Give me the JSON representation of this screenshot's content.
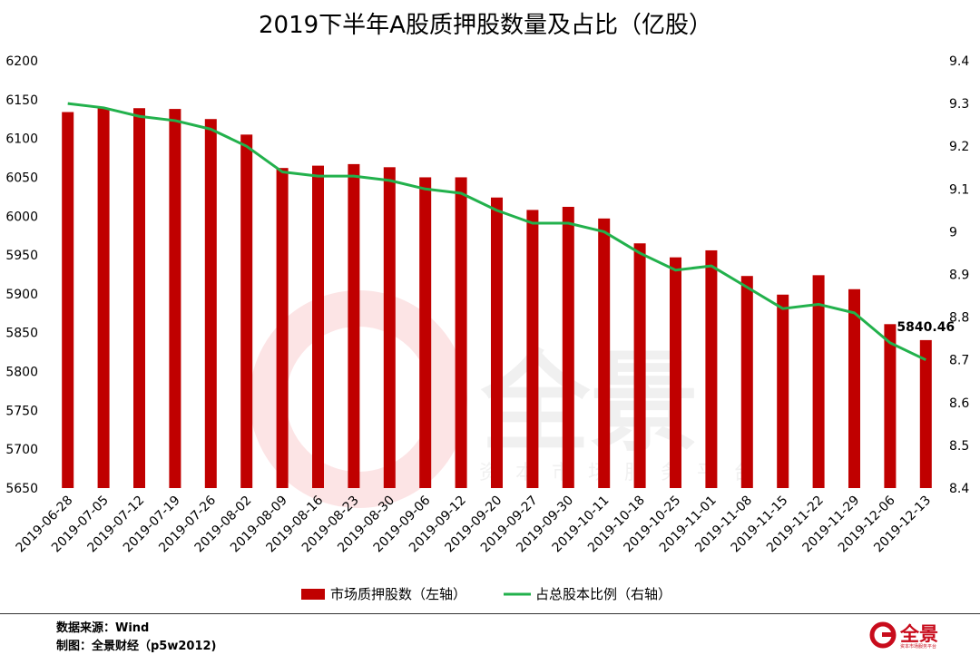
{
  "chart_data": {
    "type": "bar+line",
    "title": "2019下半年A股质押股数量及占比（亿股）",
    "categories": [
      "2019-06-28",
      "2019-07-05",
      "2019-07-12",
      "2019-07-19",
      "2019-07-26",
      "2019-08-02",
      "2019-08-09",
      "2019-08-16",
      "2019-08-23",
      "2019-08-30",
      "2019-09-06",
      "2019-09-12",
      "2019-09-20",
      "2019-09-27",
      "2019-09-30",
      "2019-10-11",
      "2019-10-18",
      "2019-10-25",
      "2019-11-01",
      "2019-11-08",
      "2019-11-15",
      "2019-11-22",
      "2019-11-29",
      "2019-12-06",
      "2019-12-13"
    ],
    "series": [
      {
        "name": "市场质押股数（左轴）",
        "type": "bar",
        "axis": "left",
        "color": "#c00000",
        "values": [
          6134,
          6139,
          6139,
          6138,
          6125,
          6105,
          6062,
          6065,
          6067,
          6063,
          6050,
          6050,
          6024,
          6008,
          6012,
          5997,
          5965,
          5947,
          5956,
          5923,
          5899,
          5924,
          5906,
          5861,
          5840.46
        ]
      },
      {
        "name": "占总股本比例（右轴）",
        "type": "line",
        "axis": "right",
        "color": "#22b14c",
        "values": [
          9.3,
          9.29,
          9.27,
          9.26,
          9.24,
          9.2,
          9.14,
          9.13,
          9.13,
          9.12,
          9.1,
          9.09,
          9.05,
          9.02,
          9.02,
          9.0,
          8.95,
          8.91,
          8.92,
          8.87,
          8.82,
          8.83,
          8.81,
          8.74,
          8.7
        ]
      }
    ],
    "left_axis": {
      "min": 5650,
      "max": 6200,
      "step": 50,
      "ticks": [
        "5650",
        "5700",
        "5750",
        "5800",
        "5850",
        "5900",
        "5950",
        "6000",
        "6050",
        "6100",
        "6150",
        "6200"
      ]
    },
    "right_axis": {
      "min": 8.4,
      "max": 9.4,
      "step": 0.1,
      "ticks": [
        "8.4",
        "8.5",
        "8.6",
        "8.7",
        "8.8",
        "8.9",
        "9",
        "9.1",
        "9.2",
        "9.3",
        "9.4"
      ]
    },
    "data_label": {
      "index": 24,
      "text": "5840.46"
    },
    "legend_position": "bottom",
    "grid": false
  },
  "footer": {
    "source": "数据来源：Wind",
    "maker": "制图：全景财经（p5w2012)"
  },
  "logo": {
    "text": "全景",
    "sub": "资本市场服务平台"
  },
  "watermark": {
    "text": "全景",
    "sub": "资本市场服务平台"
  }
}
